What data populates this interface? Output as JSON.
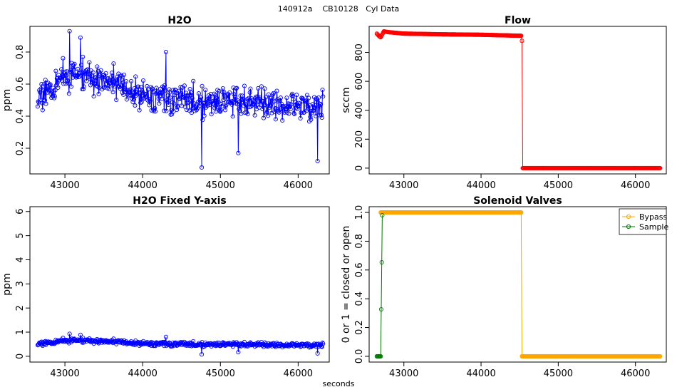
{
  "page": {
    "suptitle": "140912a    CB10128   Cyl Data",
    "xlabel": "seconds"
  },
  "chart_data": [
    {
      "id": "h2o",
      "type": "line",
      "title": "H2O",
      "xlabel": "",
      "ylabel": "ppm",
      "xlim": [
        42550,
        46400
      ],
      "ylim": [
        0.04,
        0.96
      ],
      "xticks": [
        43000,
        44000,
        45000,
        46000
      ],
      "yticks": [
        0.2,
        0.4,
        0.6,
        0.8
      ],
      "grid": false,
      "series": [
        {
          "color": "#0000ff",
          "marker": "open-circle",
          "generated": true,
          "x_range": [
            42650,
            46320
          ],
          "count": 520,
          "trend": [
            [
              42650,
              0.52
            ],
            [
              43000,
              0.66
            ],
            [
              43300,
              0.65
            ],
            [
              43700,
              0.6
            ],
            [
              44000,
              0.53
            ],
            [
              44500,
              0.5
            ],
            [
              45000,
              0.49
            ],
            [
              45500,
              0.5
            ],
            [
              46000,
              0.46
            ],
            [
              46320,
              0.45
            ]
          ],
          "spread": 0.14,
          "highlights": [
            [
              43060,
              0.93
            ],
            [
              43200,
              0.89
            ],
            [
              44300,
              0.8
            ],
            [
              44760,
              0.08
            ],
            [
              46250,
              0.12
            ],
            [
              45230,
              0.17
            ]
          ]
        }
      ]
    },
    {
      "id": "flow",
      "type": "line",
      "title": "Flow",
      "xlabel": "",
      "ylabel": "sccm",
      "xlim": [
        42550,
        46400
      ],
      "ylim": [
        -40,
        980
      ],
      "xticks": [
        43000,
        44000,
        45000,
        46000
      ],
      "yticks": [
        0,
        200,
        400,
        600,
        800
      ],
      "grid": false,
      "series": [
        {
          "color": "#ff0000",
          "marker": "open-circle",
          "points": [
            [
              42650,
              930
            ],
            [
              42680,
              912
            ],
            [
              42700,
              905
            ],
            [
              42740,
              945
            ],
            [
              42800,
              940
            ],
            [
              43000,
              930
            ],
            [
              43500,
              925
            ],
            [
              44000,
              922
            ],
            [
              44300,
              918
            ],
            [
              44520,
              915
            ],
            [
              44530,
              880
            ],
            [
              44540,
              0
            ],
            [
              45000,
              0
            ],
            [
              45500,
              0
            ],
            [
              46000,
              0
            ],
            [
              46320,
              0
            ]
          ]
        }
      ]
    },
    {
      "id": "h2o-fixed",
      "type": "line",
      "title": "H2O Fixed Y-axis",
      "xlabel": "",
      "ylabel": "ppm",
      "xlim": [
        42550,
        46400
      ],
      "ylim": [
        -0.24,
        6.2
      ],
      "xticks": [
        43000,
        44000,
        45000,
        46000
      ],
      "yticks": [
        0,
        1,
        2,
        3,
        4,
        5,
        6
      ],
      "grid": false,
      "series": [
        {
          "color": "#0000ff",
          "marker": "open-circle",
          "same_data_as": "h2o"
        }
      ]
    },
    {
      "id": "valves",
      "type": "line",
      "title": "Solenoid Valves",
      "xlabel": "",
      "ylabel": "0 or 1 = closed or open",
      "xlim": [
        42550,
        46400
      ],
      "ylim": [
        -0.04,
        1.04
      ],
      "xticks": [
        43000,
        44000,
        45000,
        46000
      ],
      "yticks": [
        0.0,
        0.2,
        0.4,
        0.6,
        0.8,
        1.0
      ],
      "grid": false,
      "legend": "top-right",
      "series": [
        {
          "name": "Bypass",
          "color": "#ffa500",
          "marker": "open-circle",
          "points": [
            [
              42700,
              1
            ],
            [
              43000,
              1
            ],
            [
              43500,
              1
            ],
            [
              44000,
              1
            ],
            [
              44520,
              1
            ],
            [
              44530,
              0
            ],
            [
              45000,
              0
            ],
            [
              45500,
              0
            ],
            [
              46000,
              0
            ],
            [
              46320,
              0
            ]
          ]
        },
        {
          "name": "Sample",
          "color": "#007700",
          "marker": "open-circle",
          "points": [
            [
              42650,
              0
            ],
            [
              42700,
              0
            ],
            [
              42720,
              0.98
            ]
          ]
        }
      ]
    }
  ]
}
